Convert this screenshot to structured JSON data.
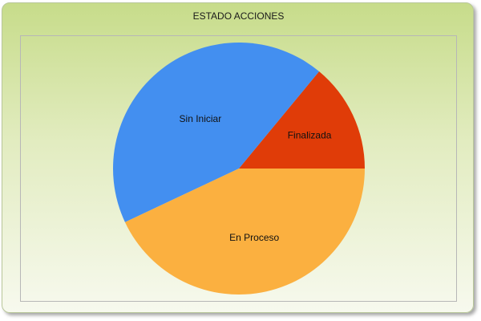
{
  "chart_data": {
    "type": "pie",
    "title": "ESTADO ACCIONES",
    "slices": [
      {
        "label": "Finalizada",
        "value": 14,
        "color": "#e03c08"
      },
      {
        "label": "Sin Iniciar",
        "value": 43,
        "color": "#438ff0"
      },
      {
        "label": "En Proceso",
        "value": 43,
        "color": "#fbb040"
      }
    ],
    "start_angle_deg": 0,
    "direction": "clockwise"
  }
}
